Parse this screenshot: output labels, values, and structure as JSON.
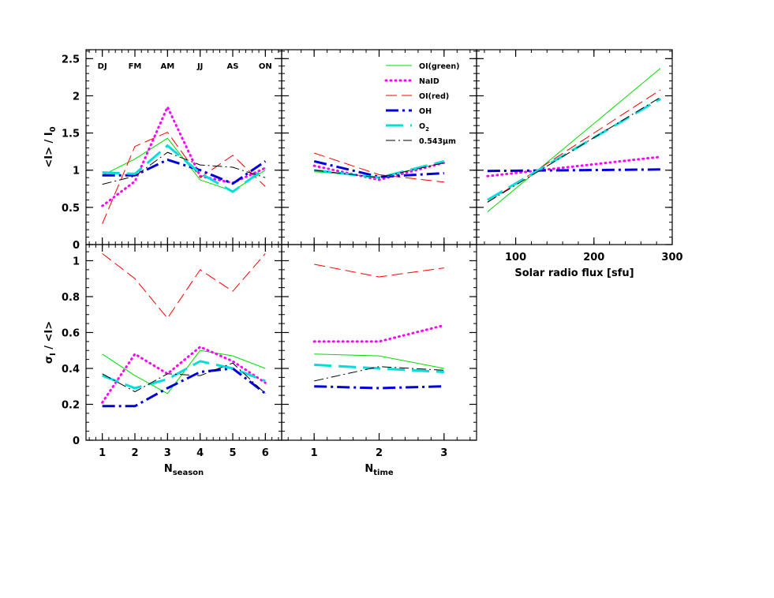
{
  "chart_data": {
    "type": "line",
    "season_labels": [
      "DJ",
      "FM",
      "AM",
      "JJ",
      "AS",
      "ON"
    ],
    "legend": [
      {
        "key": "green",
        "name": "OI(green)",
        "color": "#00dd00",
        "style": "solid",
        "width": 1
      },
      {
        "key": "naid",
        "name": "NaID",
        "color": "#ff00ff",
        "style": "dotted",
        "width": 3
      },
      {
        "key": "red",
        "name": "OI(red)",
        "color": "#ff0000",
        "style": "dashed",
        "width": 1
      },
      {
        "key": "oh",
        "name": "OH",
        "color": "#0000dd",
        "style": "dashdot",
        "width": 3
      },
      {
        "key": "o2",
        "name": "O",
        "sub": "2",
        "color": "#00dddd",
        "style": "longdash",
        "width": 3
      },
      {
        "key": "cont",
        "name": "0.543μm",
        "color": "#000000",
        "style": "dashdot-thin",
        "width": 1
      }
    ],
    "panels": [
      {
        "id": "season_mean",
        "xlim": [
          0.5,
          6.5
        ],
        "ylim": [
          0,
          2.62
        ],
        "xticks": [],
        "yticks": [
          0,
          0.5,
          1,
          1.5,
          2,
          2.5
        ],
        "ytick_labels": [
          "0",
          "0.5",
          "1",
          "1.5",
          "2",
          "2.5"
        ],
        "ylabel": "<I> / I",
        "ylabel_sub": "0",
        "show_season_labels": true,
        "series": {
          "green": {
            "x": [
              1,
              2,
              3,
              4,
              5,
              6
            ],
            "y": [
              0.93,
              1.15,
              1.43,
              0.87,
              0.72,
              1.0
            ]
          },
          "naid": {
            "x": [
              1,
              2,
              3,
              4,
              5,
              6
            ],
            "y": [
              0.52,
              0.85,
              1.85,
              0.92,
              0.83,
              1.03
            ]
          },
          "red": {
            "x": [
              1,
              2,
              3,
              4,
              5,
              6
            ],
            "y": [
              0.28,
              1.32,
              1.51,
              0.9,
              1.2,
              0.78
            ]
          },
          "oh": {
            "x": [
              1,
              2,
              3,
              4,
              5,
              6
            ],
            "y": [
              0.93,
              0.93,
              1.14,
              1.0,
              0.82,
              1.12
            ]
          },
          "o2": {
            "x": [
              1,
              2,
              3,
              4,
              5,
              6
            ],
            "y": [
              0.97,
              0.95,
              1.33,
              0.96,
              0.71,
              1.03
            ]
          },
          "cont": {
            "x": [
              1,
              2,
              3,
              4,
              5,
              6
            ],
            "y": [
              0.81,
              0.92,
              1.24,
              1.07,
              1.04,
              0.9
            ]
          }
        }
      },
      {
        "id": "time_mean",
        "xlim": [
          0.5,
          3.5
        ],
        "ylim": [
          0,
          2.62
        ],
        "xticks": [],
        "yticks": [],
        "ytick_labels": [],
        "show_legend": true,
        "series": {
          "green": {
            "x": [
              1,
              2,
              3
            ],
            "y": [
              0.98,
              0.91,
              1.1
            ]
          },
          "naid": {
            "x": [
              1,
              2,
              3
            ],
            "y": [
              1.06,
              0.87,
              1.1
            ]
          },
          "red": {
            "x": [
              1,
              2,
              3
            ],
            "y": [
              1.23,
              0.94,
              0.84
            ]
          },
          "oh": {
            "x": [
              1,
              2,
              3
            ],
            "y": [
              1.12,
              0.91,
              0.96
            ]
          },
          "o2": {
            "x": [
              1,
              2,
              3
            ],
            "y": [
              1.0,
              0.9,
              1.12
            ]
          },
          "cont": {
            "x": [
              1,
              2,
              3
            ],
            "y": [
              1.0,
              0.9,
              1.1
            ]
          }
        }
      },
      {
        "id": "flux_mean",
        "xlim": [
          50,
          300
        ],
        "ylim": [
          0,
          2.62
        ],
        "xticks": [
          100,
          200,
          300
        ],
        "xtick_labels": [
          "100",
          "200",
          "300"
        ],
        "yticks": [],
        "ytick_labels": [],
        "xlabel": "Solar radio flux [sfu]",
        "series": {
          "green": {
            "x": [
              64,
              285
            ],
            "y": [
              0.44,
              2.37
            ]
          },
          "naid": {
            "x": [
              64,
              285
            ],
            "y": [
              0.92,
              1.18
            ]
          },
          "red": {
            "x": [
              64,
              285
            ],
            "y": [
              0.57,
              2.08
            ]
          },
          "oh": {
            "x": [
              64,
              285
            ],
            "y": [
              0.99,
              1.01
            ]
          },
          "o2": {
            "x": [
              64,
              285
            ],
            "y": [
              0.6,
              1.96
            ]
          },
          "cont": {
            "x": [
              64,
              285
            ],
            "y": [
              0.57,
              1.98
            ]
          }
        }
      },
      {
        "id": "season_sigma",
        "xlim": [
          0.5,
          6.5
        ],
        "ylim": [
          0,
          1.09
        ],
        "xticks": [
          1,
          2,
          3,
          4,
          5,
          6
        ],
        "xtick_labels": [
          "1",
          "2",
          "3",
          "4",
          "5",
          "6"
        ],
        "yticks": [
          0,
          0.2,
          0.4,
          0.6,
          0.8,
          1
        ],
        "ytick_labels": [
          "0",
          "0.2",
          "0.4",
          "0.6",
          "0.8",
          "1"
        ],
        "ylabel": "σ",
        "ylabel_sub": "I",
        "ylabel_rest": " / <I>",
        "xlabel": "N",
        "xlabel_sub": "season",
        "series": {
          "green": {
            "x": [
              1,
              2,
              3,
              4,
              5,
              6
            ],
            "y": [
              0.48,
              0.36,
              0.26,
              0.5,
              0.47,
              0.4
            ]
          },
          "naid": {
            "x": [
              1,
              2,
              3,
              4,
              5,
              6
            ],
            "y": [
              0.21,
              0.48,
              0.37,
              0.52,
              0.44,
              0.32
            ]
          },
          "red": {
            "x": [
              1,
              2,
              3,
              4,
              5,
              6
            ],
            "y": [
              1.04,
              0.9,
              0.68,
              0.95,
              0.83,
              1.04
            ]
          },
          "oh": {
            "x": [
              1,
              2,
              3,
              4,
              5,
              6
            ],
            "y": [
              0.19,
              0.19,
              0.29,
              0.38,
              0.4,
              0.26
            ]
          },
          "o2": {
            "x": [
              1,
              2,
              3,
              4,
              5,
              6
            ],
            "y": [
              0.36,
              0.29,
              0.34,
              0.44,
              0.4,
              0.33
            ]
          },
          "cont": {
            "x": [
              1,
              2,
              3,
              4,
              5,
              6
            ],
            "y": [
              0.37,
              0.27,
              0.37,
              0.36,
              0.43,
              0.26
            ]
          }
        }
      },
      {
        "id": "time_sigma",
        "xlim": [
          0.5,
          3.5
        ],
        "ylim": [
          0,
          1.09
        ],
        "xticks": [
          1,
          2,
          3
        ],
        "xtick_labels": [
          "1",
          "2",
          "3"
        ],
        "yticks": [],
        "ytick_labels": [],
        "xlabel": "N",
        "xlabel_sub": "time",
        "series": {
          "green": {
            "x": [
              1,
              2,
              3
            ],
            "y": [
              0.48,
              0.47,
              0.4
            ]
          },
          "naid": {
            "x": [
              1,
              2,
              3
            ],
            "y": [
              0.55,
              0.55,
              0.64
            ]
          },
          "red": {
            "x": [
              1,
              2,
              3
            ],
            "y": [
              0.98,
              0.91,
              0.96
            ]
          },
          "oh": {
            "x": [
              1,
              2,
              3
            ],
            "y": [
              0.3,
              0.29,
              0.3
            ]
          },
          "o2": {
            "x": [
              1,
              2,
              3
            ],
            "y": [
              0.42,
              0.4,
              0.38
            ]
          },
          "cont": {
            "x": [
              1,
              2,
              3
            ],
            "y": [
              0.33,
              0.41,
              0.39
            ]
          }
        }
      }
    ]
  }
}
